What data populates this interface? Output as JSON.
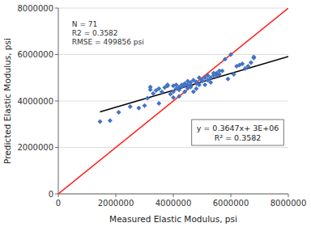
{
  "chart_data": {
    "type": "scatter",
    "title": "",
    "xlabel": "Measured Elastic Modulus, psi",
    "ylabel": "Predicted Elastic Modulus, psi",
    "xlim": [
      0,
      8000000
    ],
    "ylim": [
      0,
      8000000
    ],
    "xticks": [
      0,
      2000000,
      4000000,
      6000000,
      8000000
    ],
    "yticks": [
      0,
      2000000,
      4000000,
      6000000,
      8000000
    ],
    "grid": "y",
    "series": [
      {
        "type": "scatter",
        "color": "#4472C4",
        "marker": "diamond",
        "x": [
          1450000,
          1800000,
          2100000,
          2500000,
          2800000,
          3000000,
          3100000,
          3200000,
          3200000,
          3300000,
          3400000,
          3500000,
          3500000,
          3600000,
          3700000,
          3800000,
          3800000,
          3900000,
          4000000,
          4000000,
          4000000,
          4100000,
          4100000,
          4200000,
          4200000,
          4200000,
          4300000,
          4300000,
          4400000,
          4400000,
          4400000,
          4500000,
          4500000,
          4500000,
          4600000,
          4600000,
          4600000,
          4700000,
          4700000,
          4800000,
          4800000,
          4800000,
          4900000,
          4900000,
          5000000,
          5000000,
          5100000,
          5100000,
          5200000,
          5200000,
          5300000,
          5300000,
          5400000,
          5400000,
          5500000,
          5500000,
          5600000,
          5600000,
          5700000,
          5800000,
          5900000,
          6000000,
          6100000,
          6200000,
          6300000,
          6400000,
          6500000,
          6600000,
          6700000,
          6800000,
          6800000
        ],
        "values": [
          3110000,
          3160000,
          3510000,
          3760000,
          3700000,
          3800000,
          4120000,
          4490000,
          4600000,
          4320000,
          4450000,
          3900000,
          4530000,
          4390000,
          4580000,
          4650000,
          4700000,
          4300000,
          4650000,
          4400000,
          4150000,
          4530000,
          4700000,
          4600000,
          4480000,
          4200000,
          4700000,
          4620000,
          4750000,
          4400000,
          4680000,
          4850000,
          4700000,
          4550000,
          4600000,
          4800000,
          4680000,
          4900000,
          4400000,
          4750000,
          4820000,
          4530000,
          4700000,
          5000000,
          4850000,
          4900000,
          5000000,
          4700000,
          5100000,
          4900000,
          5000000,
          4800000,
          5100000,
          5200000,
          5200000,
          5100000,
          5150000,
          5300000,
          5300000,
          5800000,
          4950000,
          6000000,
          5150000,
          5500000,
          5550000,
          5600000,
          5400000,
          5500000,
          5650000,
          5900000,
          5850000
        ]
      },
      {
        "type": "line",
        "color": "#FF2020",
        "x": [
          0,
          8000000
        ],
        "values": [
          0,
          8000000
        ]
      },
      {
        "type": "line",
        "color": "#000000",
        "x": [
          1450000,
          8000000
        ],
        "values": [
          3528815,
          5917600
        ]
      }
    ],
    "annotations": [
      [
        "N = 71",
        "R2 = 0.3582",
        "RMSE = 499856 psi"
      ],
      [
        "y = 0.3647x+ 3E+06",
        "R² = 0.3582"
      ]
    ]
  }
}
